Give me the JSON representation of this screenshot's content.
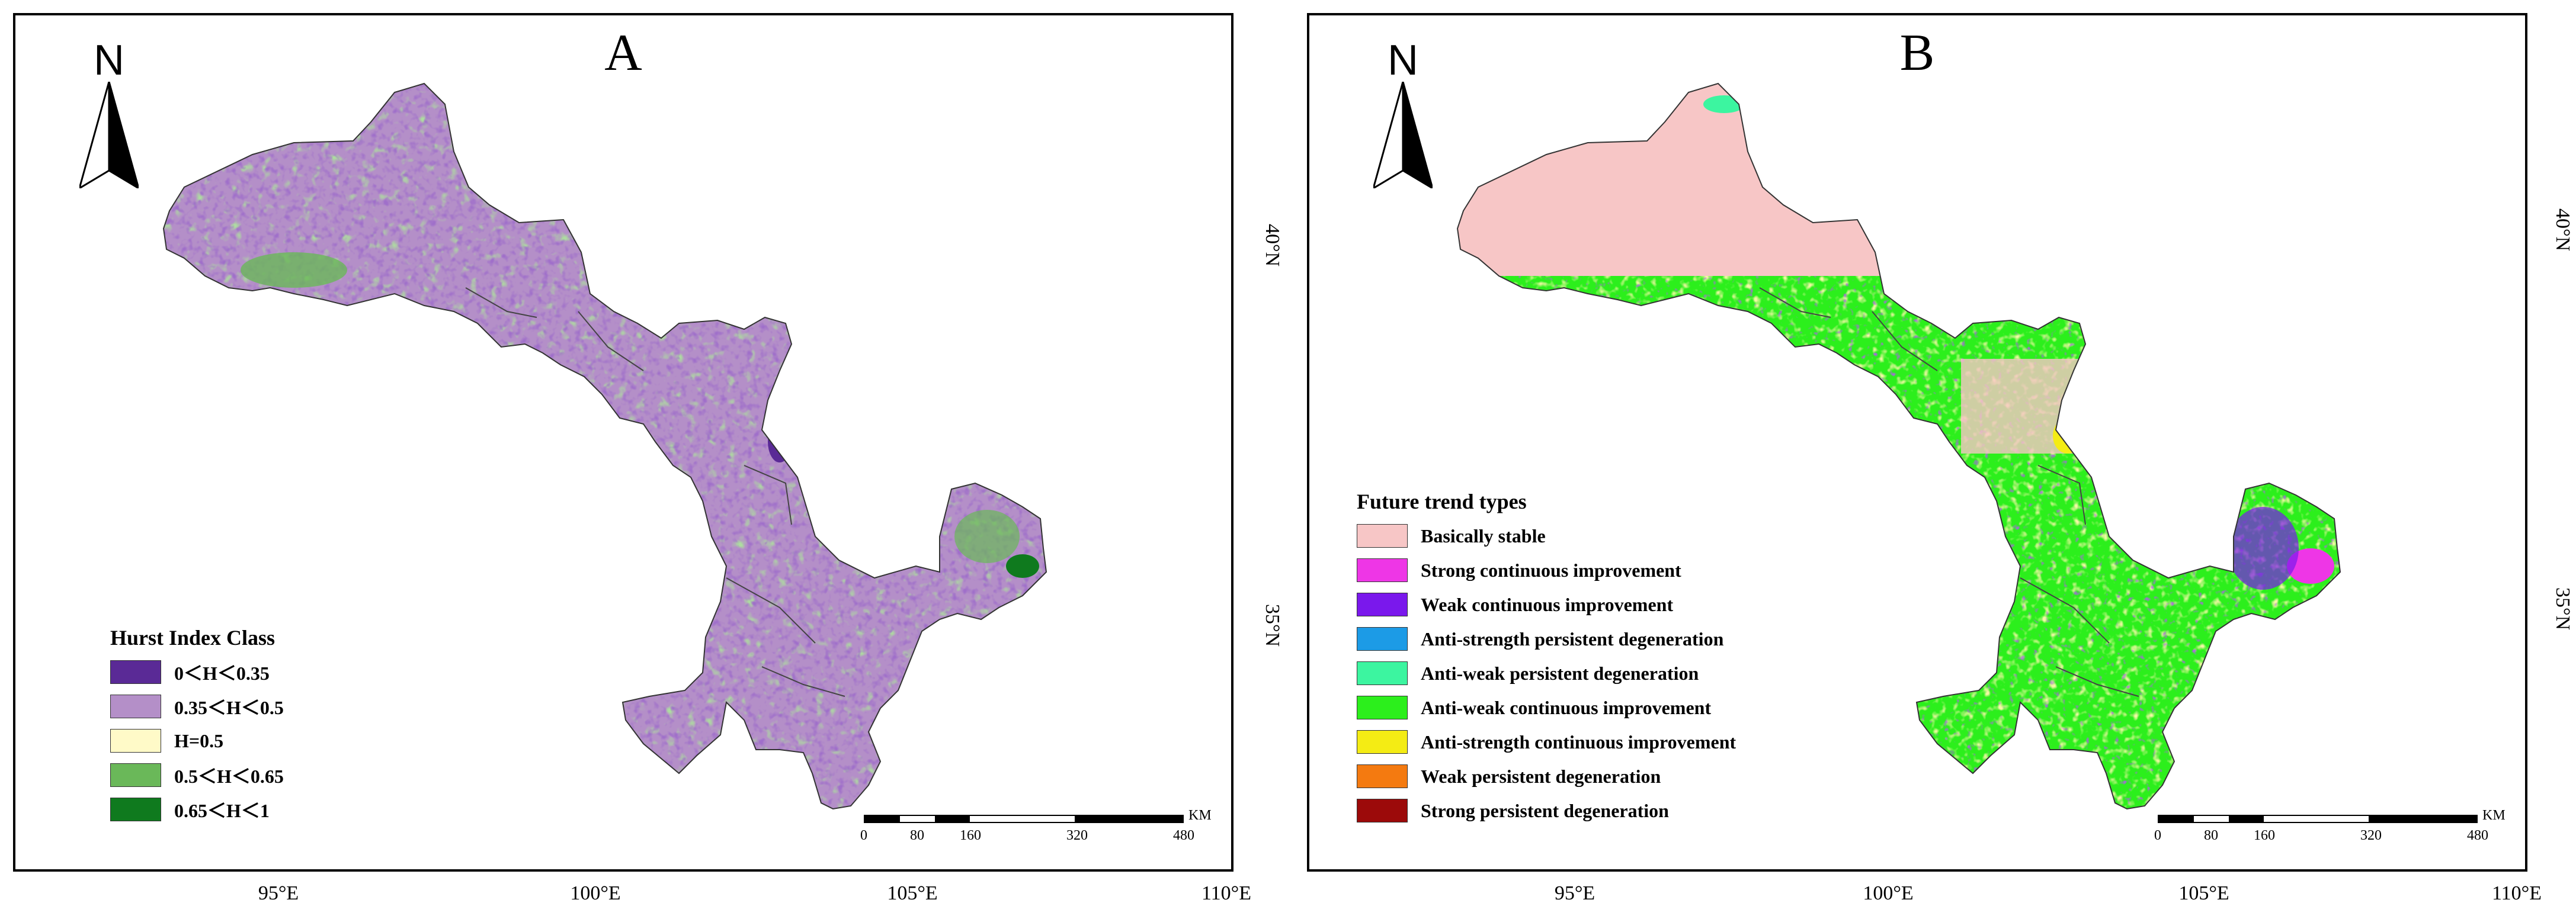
{
  "panels": {
    "a": {
      "label": "A",
      "north": "N",
      "legend": {
        "title": "Hurst Index Class",
        "items": [
          {
            "label": "0＜H＜0.35",
            "color": "#5a2a96"
          },
          {
            "label": "0.35＜H＜0.5",
            "color": "#b48fc8"
          },
          {
            "label": "H=0.5",
            "color": "#fffac8"
          },
          {
            "label": "0.5＜H＜0.65",
            "color": "#6ab859"
          },
          {
            "label": "0.65＜H＜1",
            "color": "#0f7a1e"
          }
        ]
      },
      "scalebar": {
        "unit": "KM",
        "labels": [
          "0",
          "80",
          "160",
          "320",
          "480"
        ]
      },
      "lat_labels": [
        "40°N",
        "35°N"
      ]
    },
    "b": {
      "label": "B",
      "north": "N",
      "legend": {
        "title": "Future trend types",
        "items": [
          {
            "label": "Basically stable",
            "color": "#f7c6c6"
          },
          {
            "label": "Strong continuous improvement",
            "color": "#ee36e6"
          },
          {
            "label": "Weak continuous improvement",
            "color": "#7a18ec"
          },
          {
            "label": "Anti-strength persistent degeneration",
            "color": "#1c9be6"
          },
          {
            "label": "Anti-weak persistent degeneration",
            "color": "#3cf5a0"
          },
          {
            "label": "Anti-weak continuous improvement",
            "color": "#2cef1c"
          },
          {
            "label": "Anti-strength continuous improvement",
            "color": "#f4ec14"
          },
          {
            "label": "Weak persistent degeneration",
            "color": "#f47a10"
          },
          {
            "label": "Strong persistent degeneration",
            "color": "#9c0a0a"
          }
        ]
      },
      "scalebar": {
        "unit": "KM",
        "labels": [
          "0",
          "80",
          "160",
          "320",
          "480"
        ]
      },
      "lat_labels": [
        "40°N",
        "35°N"
      ]
    }
  },
  "lon_labels": [
    "95°E",
    "100°E",
    "105°E",
    "110°E",
    "95°E",
    "100°E",
    "105°E",
    "110°E"
  ],
  "map_colors": {
    "a": {
      "base": "#b48fc8",
      "dark": "#5a2a96",
      "green": "#6ab859",
      "deep_green": "#0f7a1e"
    },
    "b": {
      "north": "#f7c6c6",
      "base": "#2cef1c",
      "yellow": "#e8ef60",
      "purple": "#7a18ec",
      "magenta": "#ee36e6"
    }
  }
}
